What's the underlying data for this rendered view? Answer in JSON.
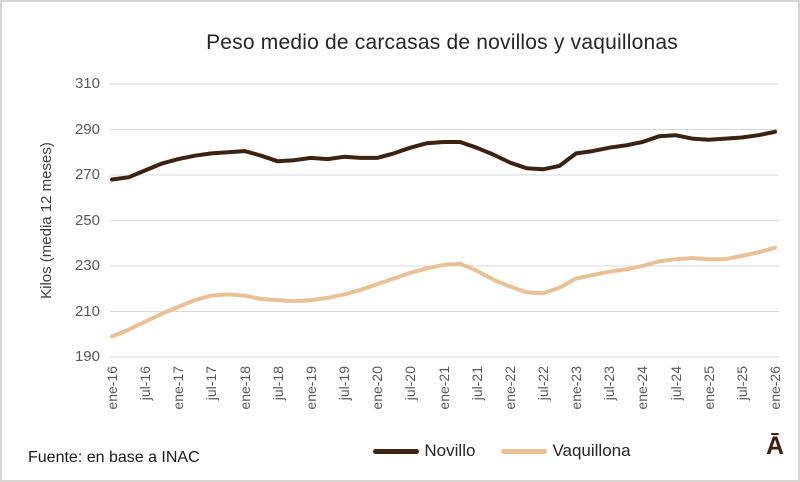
{
  "title": "Peso medio de carcasas de novillos y vaquillonas",
  "y_axis_title": "Kilos (media 12 meses)",
  "source_note": "Fuente: en base a INAC",
  "stray_glyph": "Ā",
  "colors": {
    "novillo_line": "#3b2314",
    "vaquillona_line": "#eac196",
    "gridline": "#d9d9d9",
    "title_text": "#262626",
    "tick_text": "#595959"
  },
  "chart_data": {
    "type": "line",
    "title": "Peso medio de carcasas de novillos y vaquillonas",
    "xlabel": "",
    "ylabel": "Kilos (media 12 meses)",
    "ylim": [
      190,
      310
    ],
    "yticks": [
      190,
      210,
      230,
      250,
      270,
      290,
      310
    ],
    "grid": true,
    "legend_position": "bottom",
    "x_note": "quarterly samples from ene-16 to ene-26; category ticks every 6 months",
    "categories": [
      "ene-16",
      "jul-16",
      "ene-17",
      "jul-17",
      "ene-18",
      "jul-18",
      "ene-19",
      "jul-19",
      "ene-20",
      "jul-20",
      "ene-21",
      "jul-21",
      "ene-22",
      "jul-22",
      "ene-23",
      "jul-23",
      "ene-24",
      "jul-24",
      "ene-25",
      "jul-25",
      "ene-26"
    ],
    "series": [
      {
        "name": "Novillo",
        "color": "#3b2314",
        "values": [
          268,
          269,
          272,
          275,
          277,
          278.5,
          279.5,
          280,
          280.5,
          278.5,
          276,
          276.5,
          277.5,
          277,
          278,
          277.5,
          277.5,
          279.5,
          282,
          284,
          284.5,
          284.5,
          282,
          279,
          275.5,
          273,
          272.5,
          274,
          279.5,
          280.5,
          282,
          283,
          284.5,
          287,
          287.5,
          286,
          285.5,
          286,
          286.5,
          287.5,
          289
        ]
      },
      {
        "name": "Vaquillona",
        "color": "#eac196",
        "values": [
          199,
          202,
          205.5,
          209,
          212,
          215,
          217,
          217.5,
          217,
          215.5,
          215,
          214.5,
          215,
          216,
          217.5,
          219.5,
          222,
          224.5,
          227,
          229,
          230.5,
          231,
          228,
          224,
          221,
          218.5,
          218,
          220.5,
          224.5,
          226,
          227.5,
          228.5,
          230,
          232,
          233,
          233.5,
          233,
          233,
          234.5,
          236,
          238
        ]
      }
    ]
  }
}
